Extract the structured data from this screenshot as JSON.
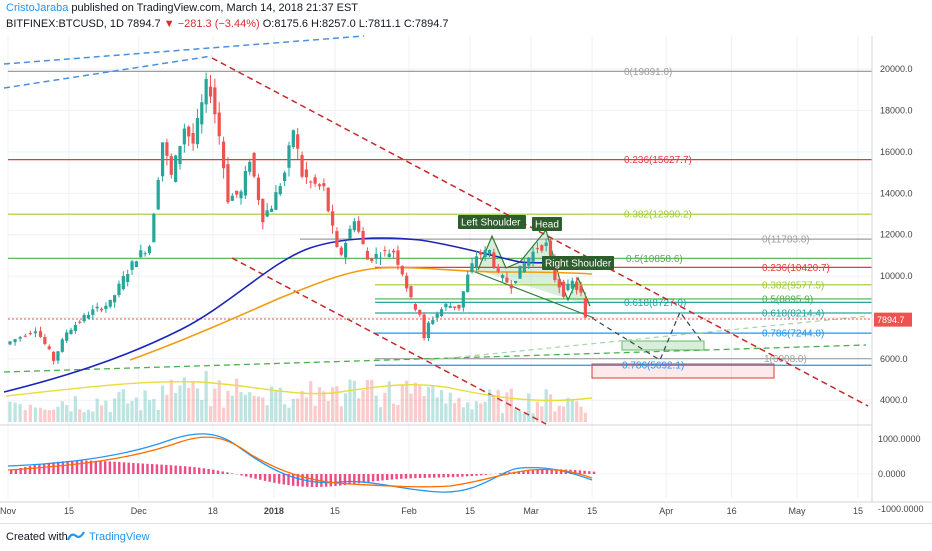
{
  "header": {
    "author": "CristoJaraba",
    "published": "published on TradingView.com, March 14, 2018 21:37 EST",
    "symbol": "BITFINEX:BTCUSD, 1D",
    "last": "7894.7",
    "change": "−281.3 (−3.44%)",
    "open": "O:8175.6",
    "high": "H:8257.0",
    "low": "L:7811.1",
    "close": "C:7894.7"
  },
  "footer": {
    "created_with": "Created with",
    "brand": "TradingView"
  },
  "colors": {
    "up": "#26a69a",
    "down": "#ef5350",
    "ma_blue": "#1a24b8",
    "ma_orange": "#f39c12",
    "trend_red": "#c62828",
    "trend_dash_blue": "#4a90e2",
    "trend_green": "#4caf50",
    "macd": "#2196f3",
    "signal": "#ff6d00",
    "hist": "#e91e63",
    "price_tag": "#ef5350"
  },
  "chart_data": {
    "type": "candlestick",
    "title": "BITFINEX:BTCUSD, 1D",
    "ylim": [
      2900,
      21600
    ],
    "yticks": [
      {
        "value": 4000,
        "label": "4000.0"
      },
      {
        "value": 6000,
        "label": "6000.0"
      },
      {
        "value": 8000,
        "label": "8000.0"
      },
      {
        "value": 10000,
        "label": "10000.0"
      },
      {
        "value": 12000,
        "label": "12000.0"
      },
      {
        "value": 14000,
        "label": "14000.0"
      },
      {
        "value": 16000,
        "label": "16000.0"
      },
      {
        "value": 18000,
        "label": "18000.0"
      },
      {
        "value": 20000,
        "label": "20000.0"
      }
    ],
    "xticks": [
      {
        "date": "2017-11-01",
        "label": "Nov"
      },
      {
        "date": "2017-11-15",
        "label": "15"
      },
      {
        "date": "2017-12-01",
        "label": "Dec"
      },
      {
        "date": "2017-12-18",
        "label": "18"
      },
      {
        "date": "2018-01-01",
        "label": "2018"
      },
      {
        "date": "2018-01-15",
        "label": "15"
      },
      {
        "date": "2018-02-01",
        "label": "Feb"
      },
      {
        "date": "2018-02-15",
        "label": "15"
      },
      {
        "date": "2018-03-01",
        "label": "Mar"
      },
      {
        "date": "2018-03-15",
        "label": "15"
      },
      {
        "date": "2018-04-01",
        "label": "Apr"
      },
      {
        "date": "2018-04-16",
        "label": "16"
      },
      {
        "date": "2018-05-01",
        "label": "May"
      },
      {
        "date": "2018-05-15",
        "label": "15"
      }
    ],
    "last_price_label": "7894.7",
    "fib_levels": [
      {
        "label": "0(19891.0)",
        "value": 19891,
        "color": "#9e9e9e"
      },
      {
        "label": "0.236(15627.7)",
        "value": 15627.7,
        "color": "#e53935"
      },
      {
        "label": "0.382(12990.2)",
        "value": 12990.2,
        "color": "#9ccc31"
      },
      {
        "label": "0(11783.8)",
        "value": 11783.8,
        "color": "#9e9e9e"
      },
      {
        "label": "0.5(10858.6)",
        "value": 10858.6,
        "color": "#4caf50"
      },
      {
        "label": "0.236(10420.7)",
        "value": 10420.7,
        "color": "#e53935"
      },
      {
        "label": "0.382(9577.5)",
        "value": 9577.5,
        "color": "#9ccc31"
      },
      {
        "label": "0.618(8727.0)",
        "value": 8727,
        "color": "#26a69a"
      },
      {
        "label": "0.5(8895.9)",
        "value": 8895.9,
        "color": "#4caf50"
      },
      {
        "label": "0.618(8214.4)",
        "value": 8214.4,
        "color": "#26a69a"
      },
      {
        "label": "0.786(7244.0)",
        "value": 7244,
        "color": "#2196f3"
      },
      {
        "label": "1(6008.0)",
        "value": 6008,
        "color": "#9e9e9e"
      },
      {
        "label": "0.786(5692.1)",
        "value": 5692.1,
        "color": "#2196f3"
      }
    ],
    "annotations": [
      "Left Shoulder",
      "Head",
      "Right Shoulder"
    ],
    "price_series_close": [
      {
        "date": "2017-11-01",
        "close": 6700
      },
      {
        "date": "2017-11-08",
        "close": 7450
      },
      {
        "date": "2017-11-12",
        "close": 5950
      },
      {
        "date": "2017-11-15",
        "close": 7300
      },
      {
        "date": "2017-11-20",
        "close": 8200
      },
      {
        "date": "2017-11-25",
        "close": 8700
      },
      {
        "date": "2017-11-28",
        "close": 9900
      },
      {
        "date": "2017-12-01",
        "close": 10900
      },
      {
        "date": "2017-12-04",
        "close": 11500
      },
      {
        "date": "2017-12-07",
        "close": 16500
      },
      {
        "date": "2017-12-09",
        "close": 14800
      },
      {
        "date": "2017-12-12",
        "close": 17200
      },
      {
        "date": "2017-12-14",
        "close": 16400
      },
      {
        "date": "2017-12-17",
        "close": 19200
      },
      {
        "date": "2017-12-18",
        "close": 19000
      },
      {
        "date": "2017-12-20",
        "close": 16800
      },
      {
        "date": "2017-12-22",
        "close": 13800
      },
      {
        "date": "2017-12-25",
        "close": 14000
      },
      {
        "date": "2017-12-27",
        "close": 15700
      },
      {
        "date": "2017-12-30",
        "close": 12900
      },
      {
        "date": "2018-01-01",
        "close": 13400
      },
      {
        "date": "2018-01-04",
        "close": 15000
      },
      {
        "date": "2018-01-06",
        "close": 17100
      },
      {
        "date": "2018-01-08",
        "close": 14900
      },
      {
        "date": "2018-01-10",
        "close": 14500
      },
      {
        "date": "2018-01-13",
        "close": 14200
      },
      {
        "date": "2018-01-16",
        "close": 11200
      },
      {
        "date": "2018-01-17",
        "close": 11100
      },
      {
        "date": "2018-01-20",
        "close": 12800
      },
      {
        "date": "2018-01-23",
        "close": 10800
      },
      {
        "date": "2018-01-26",
        "close": 11100
      },
      {
        "date": "2018-01-29",
        "close": 11200
      },
      {
        "date": "2018-01-31",
        "close": 10200
      },
      {
        "date": "2018-02-02",
        "close": 8800
      },
      {
        "date": "2018-02-04",
        "close": 8200
      },
      {
        "date": "2018-02-05",
        "close": 6900
      },
      {
        "date": "2018-02-06",
        "close": 7700
      },
      {
        "date": "2018-02-08",
        "close": 8200
      },
      {
        "date": "2018-02-10",
        "close": 8600
      },
      {
        "date": "2018-02-13",
        "close": 8500
      },
      {
        "date": "2018-02-15",
        "close": 10000
      },
      {
        "date": "2018-02-17",
        "close": 11000
      },
      {
        "date": "2018-02-20",
        "close": 11200
      },
      {
        "date": "2018-02-22",
        "close": 10000
      },
      {
        "date": "2018-02-25",
        "close": 9600
      },
      {
        "date": "2018-02-27",
        "close": 10300
      },
      {
        "date": "2018-03-01",
        "close": 10900
      },
      {
        "date": "2018-03-03",
        "close": 11400
      },
      {
        "date": "2018-03-05",
        "close": 11500
      },
      {
        "date": "2018-03-07",
        "close": 9900
      },
      {
        "date": "2018-03-09",
        "close": 9200
      },
      {
        "date": "2018-03-11",
        "close": 9700
      },
      {
        "date": "2018-03-13",
        "close": 9100
      },
      {
        "date": "2018-03-14",
        "close": 7894.7
      }
    ],
    "macd_panel": {
      "yticks": [
        {
          "value": 1000,
          "label": "1000.0000"
        },
        {
          "value": 0,
          "label": "0.0000"
        },
        {
          "value": -1000,
          "label": "-1000.0000"
        }
      ]
    }
  }
}
